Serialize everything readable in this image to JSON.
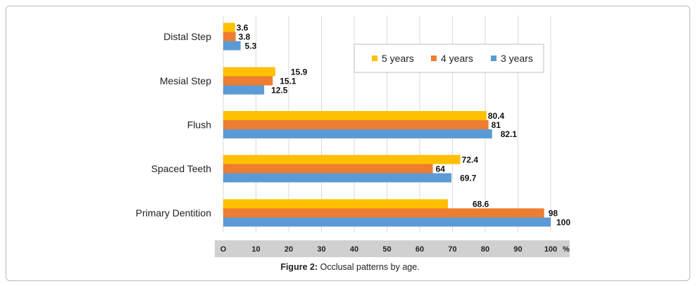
{
  "chart_data": {
    "type": "bar",
    "orientation": "horizontal",
    "categories": [
      "Distal Step",
      "Mesial Step",
      "Flush",
      "Spaced Teeth",
      "Primary Dentition"
    ],
    "series": [
      {
        "name": "5 years",
        "color": "#FFC000",
        "values": [
          3.6,
          15.9,
          80.4,
          72.4,
          68.6
        ]
      },
      {
        "name": "4 years",
        "color": "#ED7D31",
        "values": [
          3.8,
          15.1,
          81,
          64,
          98
        ]
      },
      {
        "name": "3 years",
        "color": "#5B9BD5",
        "values": [
          5.3,
          12.5,
          82.1,
          69.7,
          100
        ]
      }
    ],
    "value_labels": [
      [
        "3.6",
        "15.9",
        "80.4",
        "72.4",
        "68.6"
      ],
      [
        "3.8",
        "15.1",
        "81",
        "64",
        "98"
      ],
      [
        "5.3",
        "12.5",
        "82.1",
        "69.7",
        "100"
      ]
    ],
    "xlim": [
      0,
      100
    ],
    "xticks": [
      0,
      10,
      20,
      30,
      40,
      50,
      60,
      70,
      80,
      90,
      100
    ],
    "xtick_labels": [
      "O",
      "10",
      "20",
      "30",
      "40",
      "50",
      "60",
      "70",
      "80",
      "90",
      "100"
    ],
    "xaxis_unit": "%",
    "legend_position": "top-right",
    "grid": true
  },
  "caption": {
    "label": "Figure 2:",
    "text": " Occlusal patterns by age."
  }
}
